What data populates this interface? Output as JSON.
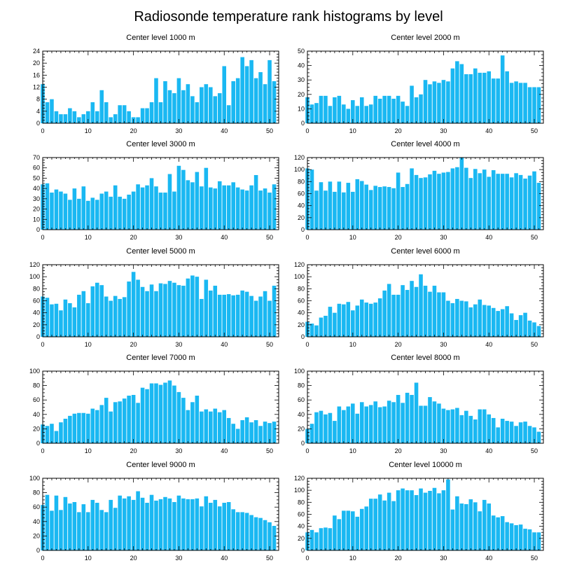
{
  "title": "Radiosonde temperature rank histograms by level",
  "colors": {
    "bar": "#1ab8f2",
    "axis": "#000000"
  },
  "chart_data": [
    {
      "type": "bar",
      "title": "Center level 1000 m",
      "xlim": [
        0,
        52
      ],
      "ylim": [
        0,
        24
      ],
      "xticks": [
        0,
        10,
        20,
        30,
        40,
        50
      ],
      "xtick_labels": [
        "0",
        "10",
        "20",
        "30",
        "40",
        "50"
      ],
      "yticks": [
        0,
        4,
        8,
        12,
        16,
        20,
        24
      ],
      "ytick_labels": [
        "0",
        "4",
        "8",
        "12",
        "16",
        "20",
        "24"
      ],
      "values": [
        13,
        7,
        8,
        4,
        3,
        3,
        5,
        4,
        2,
        3,
        4,
        7,
        4,
        11,
        7,
        2,
        3,
        6,
        6,
        4,
        2,
        2,
        5,
        5,
        7,
        15,
        7,
        14,
        11,
        10,
        15,
        11,
        13,
        9,
        7,
        12,
        13,
        12,
        9,
        10,
        19,
        6,
        14,
        15,
        22,
        19,
        21,
        15,
        17,
        13,
        21,
        14
      ]
    },
    {
      "type": "bar",
      "title": "Center level 2000 m",
      "xlim": [
        0,
        52
      ],
      "ylim": [
        0,
        50
      ],
      "xticks": [
        0,
        10,
        20,
        30,
        40,
        50
      ],
      "xtick_labels": [
        "0",
        "10",
        "20",
        "30",
        "40",
        "50"
      ],
      "yticks": [
        0,
        10,
        20,
        30,
        40,
        50
      ],
      "ytick_labels": [
        "0",
        "10",
        "20",
        "30",
        "40",
        "50"
      ],
      "values": [
        18,
        13,
        14,
        19,
        19,
        12,
        18,
        19,
        13,
        10,
        16,
        12,
        18,
        12,
        13,
        19,
        17,
        19,
        19,
        17,
        19,
        15,
        12,
        26,
        18,
        20,
        30,
        27,
        29,
        28,
        30,
        29,
        38,
        43,
        41,
        34,
        34,
        38,
        35,
        35,
        36,
        31,
        31,
        47,
        36,
        28,
        29,
        28,
        28,
        25,
        25,
        25
      ]
    },
    {
      "type": "bar",
      "title": "Center level 3000 m",
      "xlim": [
        0,
        52
      ],
      "ylim": [
        0,
        70
      ],
      "xticks": [
        0,
        10,
        20,
        30,
        40,
        50
      ],
      "xtick_labels": [
        "0",
        "10",
        "20",
        "30",
        "40",
        "50"
      ],
      "yticks": [
        0,
        10,
        20,
        30,
        40,
        50,
        60,
        70
      ],
      "ytick_labels": [
        "0",
        "10",
        "20",
        "30",
        "40",
        "50",
        "60",
        "70"
      ],
      "values": [
        44,
        45,
        36,
        39,
        37,
        35,
        29,
        40,
        30,
        42,
        28,
        31,
        29,
        35,
        37,
        32,
        43,
        32,
        30,
        34,
        37,
        44,
        41,
        43,
        50,
        42,
        36,
        36,
        54,
        37,
        62,
        58,
        48,
        46,
        56,
        42,
        60,
        41,
        40,
        47,
        43,
        43,
        46,
        41,
        39,
        38,
        43,
        53,
        38,
        40,
        36,
        44
      ]
    },
    {
      "type": "bar",
      "title": "Center level 4000 m",
      "xlim": [
        0,
        52
      ],
      "ylim": [
        0,
        120
      ],
      "xticks": [
        0,
        10,
        20,
        30,
        40,
        50
      ],
      "xtick_labels": [
        "0",
        "10",
        "20",
        "30",
        "40",
        "50"
      ],
      "yticks": [
        0,
        20,
        40,
        60,
        80,
        100,
        120
      ],
      "ytick_labels": [
        "0",
        "20",
        "40",
        "60",
        "80",
        "100",
        "120"
      ],
      "values": [
        102,
        100,
        65,
        79,
        65,
        80,
        63,
        80,
        62,
        78,
        63,
        84,
        81,
        75,
        66,
        73,
        71,
        72,
        71,
        69,
        95,
        71,
        76,
        102,
        91,
        86,
        87,
        92,
        98,
        93,
        95,
        96,
        102,
        104,
        120,
        103,
        86,
        101,
        94,
        100,
        88,
        99,
        93,
        93,
        93,
        87,
        94,
        91,
        85,
        90,
        97,
        78
      ]
    },
    {
      "type": "bar",
      "title": "Center level 5000 m",
      "xlim": [
        0,
        52
      ],
      "ylim": [
        0,
        120
      ],
      "xticks": [
        0,
        10,
        20,
        30,
        40,
        50
      ],
      "xtick_labels": [
        "0",
        "10",
        "20",
        "30",
        "40",
        "50"
      ],
      "yticks": [
        0,
        20,
        40,
        60,
        80,
        100,
        120
      ],
      "ytick_labels": [
        "0",
        "20",
        "40",
        "60",
        "80",
        "100",
        "120"
      ],
      "values": [
        67,
        65,
        54,
        55,
        44,
        62,
        56,
        49,
        70,
        76,
        56,
        84,
        90,
        86,
        67,
        60,
        68,
        63,
        66,
        92,
        108,
        95,
        83,
        76,
        87,
        76,
        89,
        88,
        93,
        90,
        86,
        85,
        97,
        102,
        100,
        63,
        95,
        77,
        85,
        70,
        70,
        71,
        69,
        70,
        77,
        75,
        68,
        60,
        67,
        76,
        60,
        85
      ]
    },
    {
      "type": "bar",
      "title": "Center level 6000 m",
      "xlim": [
        0,
        52
      ],
      "ylim": [
        0,
        120
      ],
      "xticks": [
        0,
        10,
        20,
        30,
        40,
        50
      ],
      "xtick_labels": [
        "0",
        "10",
        "20",
        "30",
        "40",
        "50"
      ],
      "yticks": [
        0,
        20,
        40,
        60,
        80,
        100,
        120
      ],
      "ytick_labels": [
        "0",
        "20",
        "40",
        "60",
        "80",
        "100",
        "120"
      ],
      "values": [
        25,
        22,
        19,
        32,
        35,
        50,
        40,
        55,
        54,
        58,
        44,
        52,
        62,
        57,
        55,
        57,
        64,
        77,
        88,
        70,
        70,
        86,
        78,
        93,
        83,
        104,
        85,
        75,
        85,
        74,
        74,
        60,
        56,
        63,
        60,
        59,
        49,
        54,
        62,
        53,
        52,
        48,
        43,
        46,
        51,
        39,
        28,
        36,
        40,
        27,
        24,
        18
      ]
    },
    {
      "type": "bar",
      "title": "Center level 7000 m",
      "xlim": [
        0,
        52
      ],
      "ylim": [
        0,
        100
      ],
      "xticks": [
        0,
        10,
        20,
        30,
        40,
        50
      ],
      "xtick_labels": [
        "0",
        "10",
        "20",
        "30",
        "40",
        "50"
      ],
      "yticks": [
        0,
        20,
        40,
        60,
        80,
        100
      ],
      "ytick_labels": [
        "0",
        "20",
        "40",
        "60",
        "80",
        "100"
      ],
      "values": [
        26,
        24,
        27,
        17,
        29,
        34,
        38,
        41,
        42,
        42,
        41,
        48,
        46,
        53,
        63,
        44,
        57,
        58,
        62,
        66,
        67,
        56,
        77,
        75,
        83,
        83,
        81,
        84,
        87,
        80,
        71,
        63,
        46,
        57,
        66,
        44,
        47,
        44,
        48,
        43,
        46,
        35,
        27,
        20,
        32,
        36,
        29,
        32,
        24,
        30,
        28,
        30
      ]
    },
    {
      "type": "bar",
      "title": "Center level 8000 m",
      "xlim": [
        0,
        52
      ],
      "ylim": [
        0,
        100
      ],
      "xticks": [
        0,
        10,
        20,
        30,
        40,
        50
      ],
      "xtick_labels": [
        "0",
        "10",
        "20",
        "30",
        "40",
        "50"
      ],
      "yticks": [
        0,
        20,
        40,
        60,
        80,
        100
      ],
      "ytick_labels": [
        "0",
        "20",
        "40",
        "60",
        "80",
        "100"
      ],
      "values": [
        20,
        27,
        43,
        45,
        40,
        42,
        31,
        51,
        46,
        51,
        55,
        41,
        57,
        51,
        53,
        58,
        50,
        51,
        59,
        57,
        67,
        56,
        70,
        67,
        84,
        52,
        52,
        64,
        58,
        55,
        48,
        46,
        47,
        49,
        39,
        45,
        38,
        33,
        47,
        47,
        40,
        35,
        22,
        34,
        31,
        30,
        24,
        29,
        30,
        24,
        22,
        16
      ]
    },
    {
      "type": "bar",
      "title": "Center level 9000 m",
      "xlim": [
        0,
        52
      ],
      "ylim": [
        0,
        100
      ],
      "xticks": [
        0,
        10,
        20,
        30,
        40,
        50
      ],
      "xtick_labels": [
        "0",
        "10",
        "20",
        "30",
        "40",
        "50"
      ],
      "yticks": [
        0,
        20,
        40,
        60,
        80,
        100
      ],
      "ytick_labels": [
        "0",
        "20",
        "40",
        "60",
        "80",
        "100"
      ],
      "values": [
        63,
        77,
        55,
        76,
        56,
        74,
        65,
        67,
        53,
        64,
        53,
        70,
        66,
        56,
        53,
        70,
        59,
        76,
        72,
        75,
        70,
        82,
        73,
        66,
        77,
        69,
        71,
        74,
        72,
        67,
        76,
        72,
        71,
        71,
        72,
        61,
        75,
        66,
        70,
        61,
        66,
        67,
        57,
        53,
        53,
        52,
        49,
        46,
        45,
        42,
        39,
        34
      ]
    },
    {
      "type": "bar",
      "title": "Center level 10000 m",
      "xlim": [
        0,
        52
      ],
      "ylim": [
        0,
        120
      ],
      "xticks": [
        0,
        10,
        20,
        30,
        40,
        50
      ],
      "xtick_labels": [
        "0",
        "10",
        "20",
        "30",
        "40",
        "50"
      ],
      "yticks": [
        0,
        20,
        40,
        60,
        80,
        100,
        120
      ],
      "ytick_labels": [
        "0",
        "20",
        "40",
        "60",
        "80",
        "100",
        "120"
      ],
      "values": [
        30,
        34,
        30,
        37,
        38,
        37,
        58,
        52,
        66,
        66,
        65,
        56,
        69,
        73,
        86,
        86,
        93,
        83,
        96,
        82,
        100,
        103,
        100,
        100,
        92,
        103,
        96,
        99,
        104,
        95,
        100,
        118,
        68,
        90,
        78,
        77,
        85,
        80,
        65,
        84,
        78,
        58,
        55,
        57,
        47,
        45,
        42,
        43,
        36,
        35,
        30,
        30
      ]
    }
  ]
}
